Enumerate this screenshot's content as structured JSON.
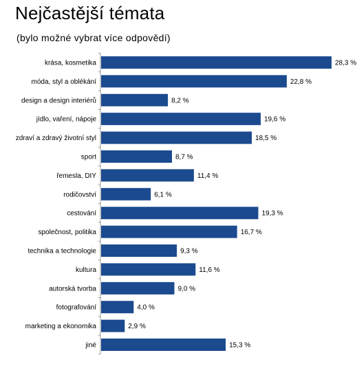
{
  "header": {
    "title": "Nejčastější témata",
    "subtitle": "(bylo možné vybrat více odpovědí)"
  },
  "colors": {
    "bar": "#1c4a8f",
    "axis": "#9a9a9a"
  },
  "chart_data": {
    "type": "bar",
    "orientation": "horizontal",
    "title": "Nejčastější témata",
    "subtitle": "(bylo možné vybrat více odpovědí)",
    "xlabel": "",
    "ylabel": "",
    "xlim": [
      0,
      28.3
    ],
    "grid": false,
    "legend": "none",
    "categories": [
      "krása, kosmetika",
      "móda, styl a oblékání",
      "design a design interiérů",
      "jídlo, vaření, nápoje",
      "zdraví a zdravý životní styl",
      "sport",
      "řemesla, DIY",
      "rodičovství",
      "cestování",
      "společnost, politika",
      "technika a technologie",
      "kultura",
      "autorská tvorba",
      "fotografování",
      "marketing a ekonomika",
      "jiné"
    ],
    "values": [
      28.3,
      22.8,
      8.2,
      19.6,
      18.5,
      8.7,
      11.4,
      6.1,
      19.3,
      16.7,
      9.3,
      11.6,
      9.0,
      4.0,
      2.9,
      15.3
    ],
    "value_labels": [
      "28,3 %",
      "22,8 %",
      "8,2 %",
      "19,6 %",
      "18,5 %",
      "8,7 %",
      "11,4 %",
      "6,1 %",
      "19,3 %",
      "16,7 %",
      "9,3 %",
      "11,6 %",
      "9,0 %",
      "4,0 %",
      "2,9 %",
      "15,3 %"
    ]
  }
}
